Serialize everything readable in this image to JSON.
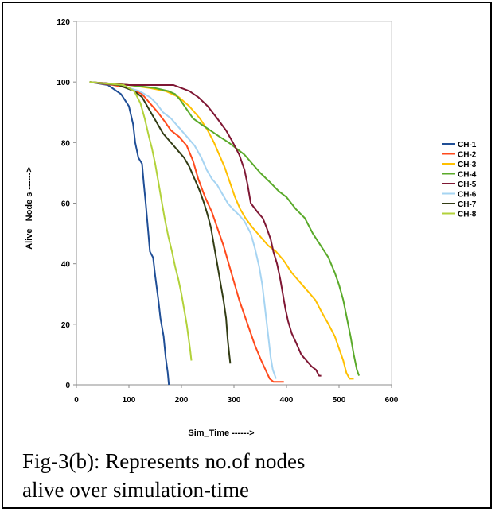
{
  "chart_data": {
    "type": "line",
    "title": "",
    "xlabel": "Sim_Time ------>",
    "ylabel": "Alive _Node s ------>",
    "xlim": [
      0,
      600
    ],
    "ylim": [
      0,
      120
    ],
    "x_ticks": [
      "0",
      "100",
      "200",
      "300",
      "400",
      "500",
      "600"
    ],
    "y_ticks": [
      "0",
      "20",
      "40",
      "60",
      "80",
      "100",
      "120"
    ],
    "grid": false,
    "legend_position": "right",
    "series": [
      {
        "name": "CH-1",
        "color": "#1f4e96",
        "points": [
          [
            25,
            100
          ],
          [
            60,
            99
          ],
          [
            85,
            96
          ],
          [
            100,
            92
          ],
          [
            108,
            86
          ],
          [
            112,
            80
          ],
          [
            118,
            75
          ],
          [
            125,
            73
          ],
          [
            128,
            67
          ],
          [
            132,
            60
          ],
          [
            136,
            52
          ],
          [
            140,
            44
          ],
          [
            146,
            42
          ],
          [
            150,
            36
          ],
          [
            156,
            28
          ],
          [
            160,
            22
          ],
          [
            166,
            16
          ],
          [
            170,
            9
          ],
          [
            174,
            4
          ],
          [
            176,
            0
          ]
        ]
      },
      {
        "name": "CH-2",
        "color": "#ff4a1c",
        "points": [
          [
            25,
            100
          ],
          [
            70,
            99
          ],
          [
            100,
            98
          ],
          [
            125,
            96
          ],
          [
            140,
            93
          ],
          [
            155,
            90
          ],
          [
            168,
            87
          ],
          [
            180,
            84
          ],
          [
            195,
            82
          ],
          [
            210,
            79
          ],
          [
            222,
            74
          ],
          [
            232,
            68
          ],
          [
            245,
            62
          ],
          [
            258,
            57
          ],
          [
            268,
            52
          ],
          [
            280,
            46
          ],
          [
            290,
            40
          ],
          [
            300,
            34
          ],
          [
            310,
            28
          ],
          [
            320,
            23
          ],
          [
            330,
            18
          ],
          [
            340,
            13
          ],
          [
            352,
            8
          ],
          [
            360,
            5
          ],
          [
            368,
            2
          ],
          [
            375,
            1
          ],
          [
            395,
            1
          ]
        ]
      },
      {
        "name": "CH-3",
        "color": "#ffc000",
        "points": [
          [
            25,
            100
          ],
          [
            100,
            99
          ],
          [
            140,
            98
          ],
          [
            170,
            97
          ],
          [
            195,
            95
          ],
          [
            215,
            92
          ],
          [
            235,
            88
          ],
          [
            250,
            84
          ],
          [
            262,
            80
          ],
          [
            272,
            76
          ],
          [
            282,
            72
          ],
          [
            292,
            67
          ],
          [
            302,
            62
          ],
          [
            312,
            58
          ],
          [
            322,
            55
          ],
          [
            335,
            52
          ],
          [
            350,
            49
          ],
          [
            365,
            46
          ],
          [
            380,
            44
          ],
          [
            395,
            41
          ],
          [
            410,
            37
          ],
          [
            425,
            34
          ],
          [
            440,
            31
          ],
          [
            455,
            28
          ],
          [
            467,
            24
          ],
          [
            480,
            20
          ],
          [
            492,
            16
          ],
          [
            500,
            12
          ],
          [
            508,
            8
          ],
          [
            514,
            4
          ],
          [
            520,
            2
          ],
          [
            528,
            2
          ]
        ]
      },
      {
        "name": "CH-4",
        "color": "#5aaa2a",
        "points": [
          [
            25,
            100
          ],
          [
            100,
            99
          ],
          [
            150,
            98
          ],
          [
            175,
            97
          ],
          [
            188,
            96
          ],
          [
            198,
            94
          ],
          [
            210,
            91
          ],
          [
            222,
            88
          ],
          [
            238,
            86
          ],
          [
            255,
            84
          ],
          [
            272,
            82
          ],
          [
            290,
            80
          ],
          [
            305,
            78
          ],
          [
            320,
            76
          ],
          [
            335,
            73
          ],
          [
            350,
            70
          ],
          [
            368,
            67
          ],
          [
            385,
            64
          ],
          [
            400,
            62
          ],
          [
            418,
            58
          ],
          [
            435,
            55
          ],
          [
            450,
            50
          ],
          [
            465,
            46
          ],
          [
            480,
            42
          ],
          [
            492,
            37
          ],
          [
            500,
            33
          ],
          [
            508,
            28
          ],
          [
            515,
            22
          ],
          [
            522,
            16
          ],
          [
            528,
            10
          ],
          [
            534,
            5
          ],
          [
            538,
            3
          ]
        ]
      },
      {
        "name": "CH-5",
        "color": "#7f1734",
        "points": [
          [
            25,
            100
          ],
          [
            100,
            99
          ],
          [
            150,
            99
          ],
          [
            185,
            99
          ],
          [
            200,
            98
          ],
          [
            215,
            97
          ],
          [
            232,
            95
          ],
          [
            250,
            92
          ],
          [
            268,
            88
          ],
          [
            285,
            84
          ],
          [
            298,
            80
          ],
          [
            310,
            76
          ],
          [
            320,
            71
          ],
          [
            326,
            66
          ],
          [
            332,
            60
          ],
          [
            345,
            57
          ],
          [
            355,
            55
          ],
          [
            362,
            52
          ],
          [
            370,
            48
          ],
          [
            375,
            44
          ],
          [
            382,
            40
          ],
          [
            388,
            35
          ],
          [
            393,
            30
          ],
          [
            398,
            25
          ],
          [
            403,
            21
          ],
          [
            410,
            17
          ],
          [
            418,
            14
          ],
          [
            428,
            10
          ],
          [
            438,
            8
          ],
          [
            448,
            6
          ],
          [
            456,
            5
          ],
          [
            462,
            3
          ],
          [
            466,
            3
          ]
        ]
      },
      {
        "name": "CH-6",
        "color": "#a6d4f2",
        "points": [
          [
            25,
            100
          ],
          [
            80,
            99
          ],
          [
            120,
            97
          ],
          [
            140,
            95
          ],
          [
            152,
            93
          ],
          [
            165,
            90
          ],
          [
            180,
            88
          ],
          [
            195,
            85
          ],
          [
            210,
            82
          ],
          [
            225,
            79
          ],
          [
            238,
            75
          ],
          [
            248,
            71
          ],
          [
            258,
            68
          ],
          [
            268,
            66
          ],
          [
            278,
            63
          ],
          [
            288,
            60
          ],
          [
            298,
            58
          ],
          [
            310,
            56
          ],
          [
            320,
            54
          ],
          [
            332,
            50
          ],
          [
            340,
            45
          ],
          [
            348,
            39
          ],
          [
            354,
            33
          ],
          [
            358,
            27
          ],
          [
            362,
            21
          ],
          [
            366,
            15
          ],
          [
            370,
            9
          ],
          [
            374,
            5
          ],
          [
            378,
            3
          ],
          [
            380,
            2
          ]
        ]
      },
      {
        "name": "CH-7",
        "color": "#323c14",
        "points": [
          [
            25,
            100
          ],
          [
            80,
            99
          ],
          [
            110,
            97
          ],
          [
            125,
            95
          ],
          [
            135,
            92
          ],
          [
            145,
            89
          ],
          [
            155,
            86
          ],
          [
            165,
            83
          ],
          [
            175,
            81
          ],
          [
            185,
            79
          ],
          [
            195,
            77
          ],
          [
            205,
            75
          ],
          [
            215,
            72
          ],
          [
            225,
            68
          ],
          [
            235,
            64
          ],
          [
            243,
            60
          ],
          [
            250,
            56
          ],
          [
            256,
            52
          ],
          [
            262,
            46
          ],
          [
            268,
            40
          ],
          [
            274,
            34
          ],
          [
            280,
            28
          ],
          [
            285,
            22
          ],
          [
            288,
            15
          ],
          [
            291,
            10
          ],
          [
            293,
            7
          ]
        ]
      },
      {
        "name": "CH-8",
        "color": "#b2d23a",
        "points": [
          [
            25,
            100
          ],
          [
            90,
            99
          ],
          [
            110,
            97
          ],
          [
            122,
            93
          ],
          [
            130,
            88
          ],
          [
            138,
            82
          ],
          [
            144,
            78
          ],
          [
            150,
            73
          ],
          [
            156,
            67
          ],
          [
            162,
            61
          ],
          [
            168,
            55
          ],
          [
            175,
            49
          ],
          [
            182,
            44
          ],
          [
            188,
            39
          ],
          [
            194,
            35
          ],
          [
            200,
            30
          ],
          [
            205,
            25
          ],
          [
            210,
            20
          ],
          [
            214,
            15
          ],
          [
            217,
            11
          ],
          [
            219,
            8
          ]
        ]
      }
    ]
  },
  "caption": {
    "line1": "Fig-3(b): Represents no.of nodes",
    "line2": "alive over simulation-time"
  }
}
